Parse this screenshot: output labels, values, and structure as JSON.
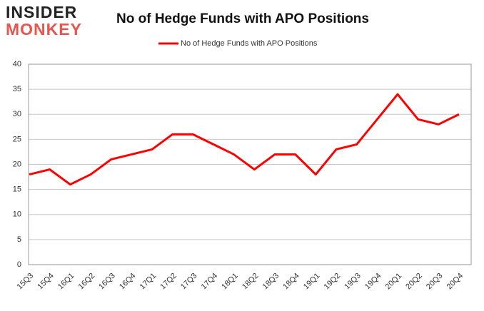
{
  "logo": {
    "line1": "INSIDER",
    "line2": "MONKEY"
  },
  "chart_data": {
    "type": "line",
    "title": "No of Hedge Funds with APO Positions",
    "categories": [
      "15Q3",
      "15Q4",
      "16Q1",
      "16Q2",
      "16Q3",
      "16Q4",
      "17Q1",
      "17Q2",
      "17Q3",
      "17Q4",
      "18Q1",
      "18Q2",
      "18Q3",
      "18Q4",
      "19Q1",
      "19Q2",
      "19Q3",
      "19Q4",
      "20Q1",
      "20Q2",
      "20Q3",
      "20Q4"
    ],
    "series": [
      {
        "name": "No of Hedge Funds with APO Positions",
        "color": "#ff0000",
        "values": [
          18,
          19,
          16,
          18,
          21,
          22,
          23,
          26,
          26,
          24,
          22,
          19,
          22,
          22,
          18,
          23,
          24,
          29,
          34,
          29,
          28,
          30
        ]
      }
    ],
    "ylim": [
      0,
      40
    ],
    "yticks": [
      0,
      5,
      10,
      15,
      20,
      25,
      30,
      35,
      40
    ],
    "grid": true,
    "legend": "top"
  }
}
